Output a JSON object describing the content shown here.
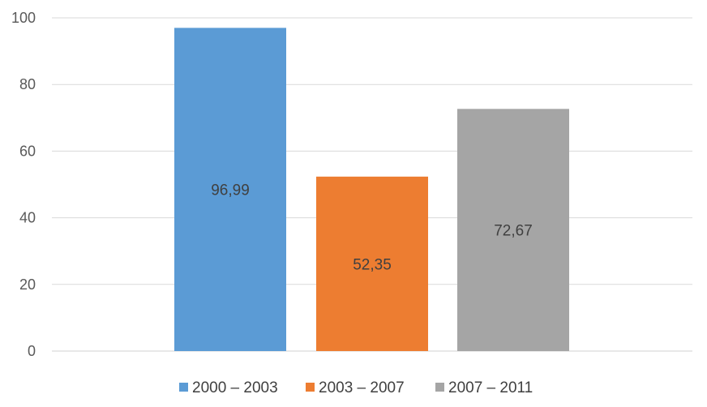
{
  "chart_data": {
    "type": "bar",
    "categories": [
      "2000 – 2003",
      "2003 – 2007",
      "2007 – 2011"
    ],
    "values": [
      96.99,
      52.35,
      72.67
    ],
    "data_labels": [
      "96,99",
      "52,35",
      "72,67"
    ],
    "ylim": [
      0,
      100
    ],
    "yticks": [
      0,
      20,
      40,
      60,
      80,
      100
    ],
    "colors": [
      "#5b9bd5",
      "#ed7d31",
      "#a5a5a5"
    ],
    "grid": true,
    "legend_position": "bottom",
    "data_label_position": "center"
  }
}
